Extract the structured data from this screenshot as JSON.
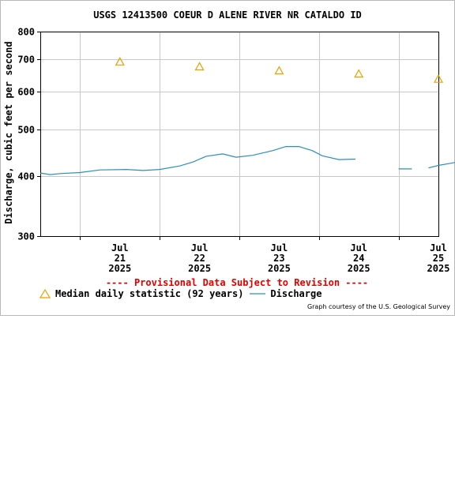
{
  "header": {
    "title": "USGS 12413500 COEUR D ALENE RIVER NR CATALDO ID"
  },
  "notice": {
    "provisional": "---- Provisional Data Subject to Revision ----"
  },
  "legend": {
    "median_label": "Median daily statistic (92 years)",
    "discharge_label": "Discharge"
  },
  "footer": {
    "courtesy": "Graph courtesy of the U.S. Geological Survey"
  },
  "colors": {
    "median": "#e8a000",
    "discharge": "#2a8fbf",
    "grid": "#c8c8c8",
    "provisional": "#e00000"
  },
  "chart_data": {
    "type": "line",
    "title": "USGS 12413500 COEUR D ALENE RIVER NR CATALDO ID",
    "ylabel": "Discharge, cubic feet per second",
    "yscale": "log",
    "ylim": [
      300,
      800
    ],
    "yticks": [
      300,
      400,
      500,
      600,
      700,
      800
    ],
    "xlim": [
      "2025-07-20T12:00",
      "2025-07-25T12:00"
    ],
    "grid": true,
    "xticks": [
      {
        "day": "2025-07-21",
        "lines": [
          "Jul",
          "21",
          "2025"
        ]
      },
      {
        "day": "2025-07-22",
        "lines": [
          "Jul",
          "22",
          "2025"
        ]
      },
      {
        "day": "2025-07-23",
        "lines": [
          "Jul",
          "23",
          "2025"
        ]
      },
      {
        "day": "2025-07-24",
        "lines": [
          "Jul",
          "24",
          "2025"
        ]
      },
      {
        "day": "2025-07-25",
        "lines": [
          "Jul",
          "25",
          "2025"
        ]
      }
    ],
    "series": [
      {
        "name": "Median daily statistic (92 years)",
        "style": "triangle-marker",
        "points": [
          {
            "x": "2025-07-21T12:00",
            "y": 692
          },
          {
            "x": "2025-07-22T12:00",
            "y": 676
          },
          {
            "x": "2025-07-23T12:00",
            "y": 663
          },
          {
            "x": "2025-07-24T12:00",
            "y": 653
          },
          {
            "x": "2025-07-25T12:00",
            "y": 637
          }
        ]
      },
      {
        "name": "Discharge",
        "style": "line",
        "segments": [
          [
            {
              "x": "2025-07-20T12:00",
              "y": 406
            },
            {
              "x": "2025-07-20T15:00",
              "y": 403
            },
            {
              "x": "2025-07-20T18:00",
              "y": 405
            },
            {
              "x": "2025-07-21T00:00",
              "y": 407
            },
            {
              "x": "2025-07-21T06:00",
              "y": 412
            },
            {
              "x": "2025-07-21T14:00",
              "y": 413
            },
            {
              "x": "2025-07-21T19:00",
              "y": 411
            },
            {
              "x": "2025-07-22T00:00",
              "y": 413
            },
            {
              "x": "2025-07-22T06:00",
              "y": 420
            },
            {
              "x": "2025-07-22T10:00",
              "y": 428
            },
            {
              "x": "2025-07-22T14:00",
              "y": 440
            },
            {
              "x": "2025-07-22T19:00",
              "y": 445
            },
            {
              "x": "2025-07-22T23:00",
              "y": 438
            },
            {
              "x": "2025-07-23T04:00",
              "y": 442
            },
            {
              "x": "2025-07-23T10:00",
              "y": 452
            },
            {
              "x": "2025-07-23T14:00",
              "y": 461
            },
            {
              "x": "2025-07-23T18:00",
              "y": 461
            },
            {
              "x": "2025-07-23T22:00",
              "y": 452
            },
            {
              "x": "2025-07-24T01:00",
              "y": 441
            },
            {
              "x": "2025-07-24T06:00",
              "y": 433
            },
            {
              "x": "2025-07-24T11:00",
              "y": 434
            }
          ],
          [
            {
              "x": "2025-07-25T00:00",
              "y": 414
            },
            {
              "x": "2025-07-25T04:00",
              "y": 414
            }
          ],
          [
            {
              "x": "2025-07-25T09:00",
              "y": 416
            },
            {
              "x": "2025-07-25T12:00",
              "y": 421
            },
            {
              "x": "2025-07-25T17:00",
              "y": 427
            }
          ]
        ]
      }
    ]
  }
}
